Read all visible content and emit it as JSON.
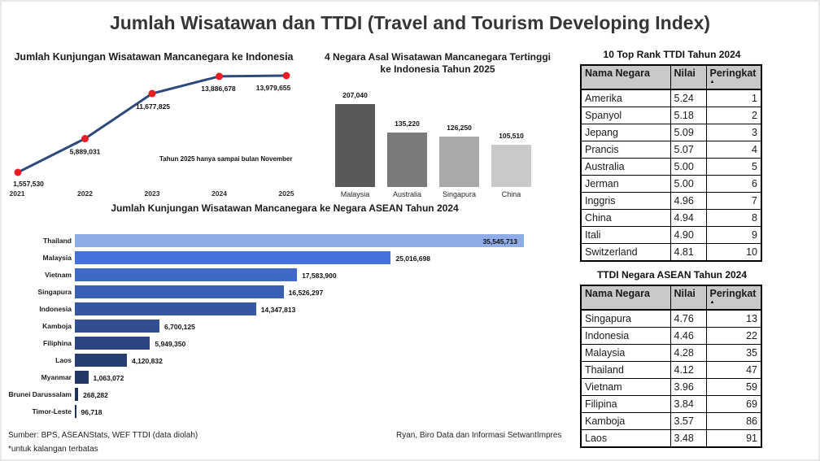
{
  "page": {
    "title": "Jumlah Wisatawan dan TTDI (Travel and Tourism Developing Index)",
    "footer": {
      "source": "Sumber: BPS, ASEANStats, WEF TTDI (data diolah)",
      "note": "*untuk kalangan terbatas",
      "credit": "Ryan, Biro Data dan Informasi SetwantImpres"
    },
    "colors": {
      "line": "#2E4A7D",
      "marker": "#EC1C24",
      "table_header_bg": "#C9C9C9",
      "title_text": "#363636"
    }
  },
  "chart_data": [
    {
      "id": "visits-line",
      "type": "line",
      "title": "Jumlah Kunjungan Wisatawan Mancanegara ke Indonesia",
      "x": [
        "2021",
        "2022",
        "2023",
        "2024",
        "2025"
      ],
      "values": [
        1557530,
        5889031,
        11677825,
        13886678,
        13979655
      ],
      "value_labels": [
        "1,557,530",
        "5,889,031",
        "11,677,825",
        "13,886,678",
        "13,979,655"
      ],
      "annotation": "Tahun 2025 hanya sampai bulan November",
      "line_color": "#2E4A7D",
      "marker_color": "#EC1C24",
      "grid": false,
      "legend": "none",
      "ylim": [
        1000000,
        14500000
      ]
    },
    {
      "id": "origin-bar",
      "type": "bar",
      "title": "4 Negara Asal Wisatawan Mancanegara Tertinggi ke Indonesia Tahun 2025",
      "title_lines": [
        "4 Negara Asal Wisatawan Mancanegara Tertinggi",
        "ke Indonesia Tahun 2025"
      ],
      "categories": [
        "Malaysia",
        "Australia",
        "Singapura",
        "China"
      ],
      "values": [
        207040,
        135220,
        126250,
        105510
      ],
      "value_labels": [
        "207,040",
        "135,220",
        "126,250",
        "105,510"
      ],
      "bar_colors": [
        "#595959",
        "#7A7A7A",
        "#A9A9A9",
        "#C9C9C9"
      ],
      "grid": false,
      "legend": "none"
    },
    {
      "id": "asean-hbar",
      "type": "bar",
      "orientation": "horizontal",
      "title": "Jumlah Kunjungan Wisatawan Mancanegara ke Negara ASEAN Tahun 2024",
      "categories": [
        "Thailand",
        "Malaysia",
        "Vietnam",
        "Singapura",
        "Indonesia",
        "Kamboja",
        "Filiphina",
        "Laos",
        "Myanmar",
        "Brunei Darussalam",
        "Timor-Leste"
      ],
      "values": [
        35545713,
        25016698,
        17583900,
        16526297,
        14347813,
        6700125,
        5949350,
        4120832,
        1063072,
        268282,
        96718
      ],
      "value_labels": [
        "35,545,713",
        "25,016,698",
        "17,583,900",
        "16,526,297",
        "14,347,813",
        "6,700,125",
        "5,949,350",
        "4,120,832",
        "1,063,072",
        "268,282",
        "96,718"
      ],
      "bar_colors": [
        "#8EACE8",
        "#4472DB",
        "#3F69C6",
        "#3A60B4",
        "#3557A2",
        "#304E91",
        "#2B4580",
        "#263D70",
        "#223763",
        "#1E3156",
        "#1E3156"
      ],
      "first_label_inside": true,
      "grid": false,
      "legend": "none"
    }
  ],
  "tables": [
    {
      "id": "ttdi-top10",
      "title": "10 Top Rank TTDI Tahun 2024",
      "columns": [
        "Nama Negara",
        "Nilai",
        "Peringkat"
      ],
      "sort_column": "Peringkat",
      "sort_icon": "▲",
      "rows": [
        [
          "Amerika",
          "5.24",
          "1"
        ],
        [
          "Spanyol",
          "5.18",
          "2"
        ],
        [
          "Jepang",
          "5.09",
          "3"
        ],
        [
          "Prancis",
          "5.07",
          "4"
        ],
        [
          "Australia",
          "5.00",
          "5"
        ],
        [
          "Jerman",
          "5.00",
          "6"
        ],
        [
          "Inggris",
          "4.96",
          "7"
        ],
        [
          "China",
          "4.94",
          "8"
        ],
        [
          "Itali",
          "4.90",
          "9"
        ],
        [
          "Switzerland",
          "4.81",
          "10"
        ]
      ]
    },
    {
      "id": "ttdi-asean",
      "title": "TTDI Negara ASEAN Tahun 2024",
      "columns": [
        "Nama Negara",
        "Nilai",
        "Peringkat"
      ],
      "sort_column": "Peringkat",
      "sort_icon": "▲",
      "rows": [
        [
          "Singapura",
          "4.76",
          "13"
        ],
        [
          "Indonesia",
          "4.46",
          "22"
        ],
        [
          "Malaysia",
          "4.28",
          "35"
        ],
        [
          "Thailand",
          "4.12",
          "47"
        ],
        [
          "Vietnam",
          "3.96",
          "59"
        ],
        [
          "Filipina",
          "3.84",
          "69"
        ],
        [
          "Kamboja",
          "3.57",
          "86"
        ],
        [
          "Laos",
          "3.48",
          "91"
        ]
      ]
    }
  ]
}
